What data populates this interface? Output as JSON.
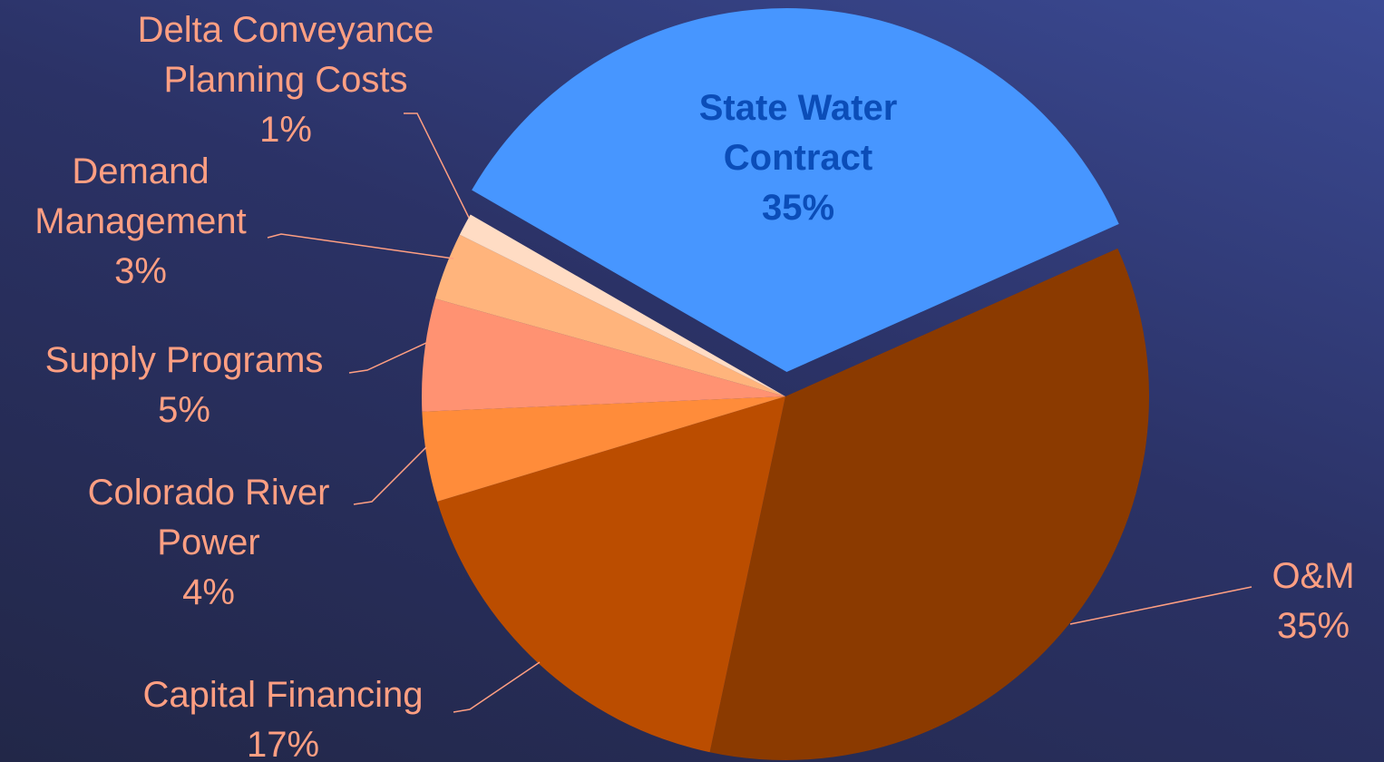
{
  "chart_data": {
    "type": "pie",
    "categories": [
      "State Water Contract",
      "O&M",
      "Capital Financing",
      "Colorado River Power",
      "Supply Programs",
      "Demand Management",
      "Delta Conveyance Planning Costs"
    ],
    "values": [
      35,
      35,
      17,
      4,
      5,
      3,
      1
    ],
    "value_labels": [
      "35%",
      "35%",
      "17%",
      "4%",
      "5%",
      "3%",
      "1%"
    ],
    "colors": [
      "#4796ff",
      "#8b3a00",
      "#bb4d00",
      "#ff8c3a",
      "#ff9272",
      "#ffb47c",
      "#ffdcc4"
    ]
  }
}
